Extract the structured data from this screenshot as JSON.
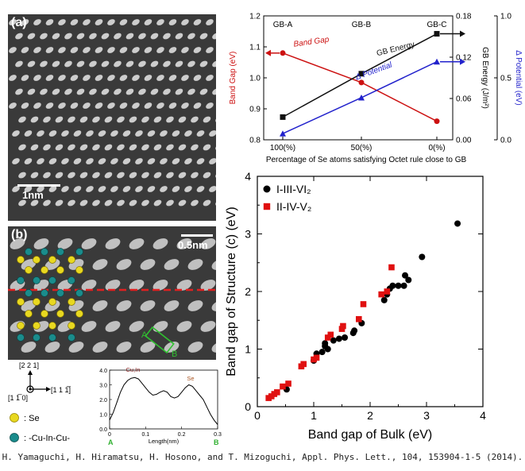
{
  "panel_a": {
    "letter": "(a)",
    "scale_label": "1nm"
  },
  "panel_b": {
    "letter": "(b)",
    "scale_label": "0.5nm",
    "marker_a": "A",
    "marker_b": "B",
    "direction_up": "[2 2 1]",
    "direction_right": "[1 1 1̅]",
    "direction_out": "[1 1̅ 0]",
    "legend_se": ": Se",
    "legend_cuincu": ": -Cu-In-Cu-",
    "colors": {
      "se": "#e8d820",
      "cuincu": "#1a8c8c",
      "dashed_line": "#e02020",
      "box": "#30c030"
    }
  },
  "profile_chart": {
    "xlabel": "Length(nm)",
    "peak_left": "Cu,In",
    "peak_right": "Se",
    "end_a": "A",
    "end_b": "B",
    "ylim": [
      0.0,
      4.0
    ],
    "yticks": [
      "0.0",
      "1.0",
      "2.0",
      "3.0",
      "4.0"
    ],
    "xlim": [
      0,
      0.3
    ],
    "xticks": [
      "0",
      "0.1",
      "0.2",
      "0.3"
    ],
    "x": [
      0.0,
      0.01,
      0.02,
      0.03,
      0.04,
      0.05,
      0.06,
      0.07,
      0.08,
      0.09,
      0.1,
      0.11,
      0.12,
      0.13,
      0.14,
      0.15,
      0.16,
      0.17,
      0.18,
      0.19,
      0.2,
      0.21,
      0.22,
      0.23,
      0.24,
      0.25,
      0.26,
      0.27,
      0.28,
      0.29,
      0.3
    ],
    "y": [
      0.6,
      1.1,
      1.8,
      2.5,
      3.0,
      3.3,
      3.45,
      3.5,
      3.4,
      3.1,
      2.8,
      2.5,
      2.3,
      2.35,
      2.5,
      2.6,
      2.5,
      2.2,
      2.1,
      2.2,
      2.5,
      2.8,
      3.0,
      2.9,
      2.6,
      2.3,
      2.0,
      1.5,
      1.0,
      0.6,
      0.3
    ]
  },
  "chart_data": [
    {
      "type": "line",
      "categories": [
        "100(%)",
        "50(%)",
        "0(%)"
      ],
      "top_labels": [
        "GB-A",
        "GB-B",
        "GB-C"
      ],
      "xlabel": "Percentage of Se atoms satisfying Octet rule close to GB",
      "ylabel_left": "Band Gap (eV)",
      "ylabel_right1": "GB Energy (J/m²)",
      "ylabel_right2": "Δ Potential (eV)",
      "ylim_left": [
        0.8,
        1.2
      ],
      "yticks_left": [
        "0.8",
        "0.9",
        "1.0",
        "1.1",
        "1.2"
      ],
      "ylim_right1": [
        0.0,
        0.18
      ],
      "yticks_right1": [
        "0.00",
        "0.06",
        "0.12",
        "0.18"
      ],
      "ylim_right2": [
        0.0,
        1.0
      ],
      "yticks_right2": [
        "0.0",
        "0.5",
        "1.0"
      ],
      "series": [
        {
          "name": "Band Gap",
          "axis": "left",
          "color": "#cc1111",
          "marker": "circle",
          "values": [
            1.08,
            0.985,
            0.86
          ]
        },
        {
          "name": "GB Energy",
          "axis": "right1",
          "color": "#111111",
          "marker": "square",
          "values": [
            0.033,
            0.096,
            0.154
          ]
        },
        {
          "name": "Δ Potential",
          "axis": "right2",
          "color": "#2222cc",
          "marker": "triangle",
          "values": [
            0.05,
            0.34,
            0.63
          ]
        }
      ]
    },
    {
      "type": "scatter",
      "xlabel": "Band gap of Bulk (eV)",
      "ylabel": "Band gap of Structure (c) (eV)",
      "xlim": [
        0,
        4
      ],
      "ylim": [
        0,
        4
      ],
      "xticks": [
        "0",
        "1",
        "2",
        "3",
        "4"
      ],
      "yticks": [
        "0",
        "1",
        "2",
        "3",
        "4"
      ],
      "legend_position": "top-left",
      "series": [
        {
          "name": "I-III-VI₂",
          "color": "#000000",
          "marker": "circle",
          "points": [
            [
              0.52,
              0.3
            ],
            [
              1.0,
              0.8
            ],
            [
              1.05,
              0.92
            ],
            [
              1.15,
              0.95
            ],
            [
              1.2,
              1.05
            ],
            [
              1.2,
              1.1
            ],
            [
              1.25,
              1.0
            ],
            [
              1.35,
              1.15
            ],
            [
              1.45,
              1.18
            ],
            [
              1.55,
              1.2
            ],
            [
              1.7,
              1.28
            ],
            [
              1.72,
              1.32
            ],
            [
              1.85,
              1.45
            ],
            [
              2.25,
              1.85
            ],
            [
              2.3,
              1.95
            ],
            [
              2.35,
              2.05
            ],
            [
              2.4,
              2.1
            ],
            [
              2.5,
              2.1
            ],
            [
              2.6,
              2.1
            ],
            [
              2.62,
              2.28
            ],
            [
              2.68,
              2.2
            ],
            [
              2.92,
              2.6
            ],
            [
              3.55,
              3.18
            ]
          ]
        },
        {
          "name": "II-IV-V₂",
          "color": "#e01010",
          "marker": "square",
          "points": [
            [
              0.2,
              0.15
            ],
            [
              0.25,
              0.18
            ],
            [
              0.3,
              0.22
            ],
            [
              0.35,
              0.25
            ],
            [
              0.45,
              0.35
            ],
            [
              0.55,
              0.4
            ],
            [
              0.78,
              0.7
            ],
            [
              0.82,
              0.74
            ],
            [
              1.0,
              0.82
            ],
            [
              1.05,
              0.85
            ],
            [
              1.25,
              1.2
            ],
            [
              1.3,
              1.25
            ],
            [
              1.5,
              1.35
            ],
            [
              1.52,
              1.4
            ],
            [
              1.8,
              1.52
            ],
            [
              1.88,
              1.78
            ],
            [
              2.2,
              1.95
            ],
            [
              2.3,
              2.0
            ],
            [
              2.38,
              2.42
            ]
          ]
        }
      ]
    }
  ],
  "citation": "H. Yamaguchi, H. Hiramatsu, H. Hosono, and T. Mizoguchi, Appl. Phys. Lett., 104, 153904-1-5 (2014)."
}
